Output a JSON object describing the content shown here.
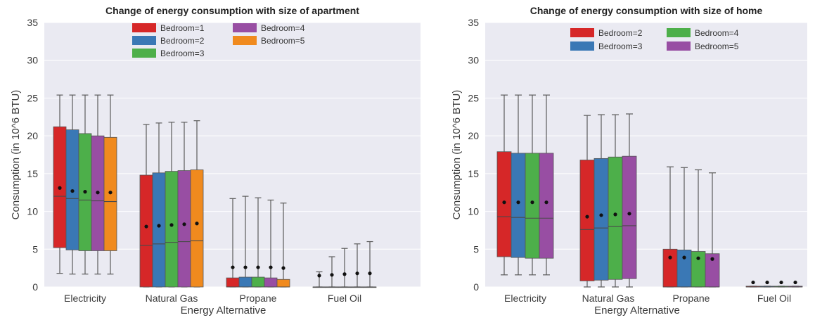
{
  "chart_data": [
    {
      "type": "box",
      "title": "Change of energy consumption with size of apartment",
      "xlabel": "Energy Alternative",
      "ylabel": "Consumption (in 10^6 BTU)",
      "ylim": [
        0,
        35
      ],
      "yticks": [
        0,
        5,
        10,
        15,
        20,
        25,
        30,
        35
      ],
      "grid": true,
      "legend_position": "top-center",
      "categories": [
        "Electricity",
        "Natural Gas",
        "Propane",
        "Fuel Oil"
      ],
      "series": [
        {
          "name": "Bedroom=1",
          "color": "#d62728",
          "boxes": [
            {
              "whisker_low": 1.8,
              "q1": 5.2,
              "median": 12.0,
              "q3": 21.2,
              "whisker_high": 25.4,
              "mean": 13.1
            },
            {
              "whisker_low": 0,
              "q1": 0,
              "median": 5.5,
              "q3": 14.8,
              "whisker_high": 21.5,
              "mean": 8.0
            },
            {
              "whisker_low": 0,
              "q1": 0,
              "median": 0,
              "q3": 1.2,
              "whisker_high": 11.7,
              "mean": 2.6
            },
            {
              "whisker_low": 0,
              "q1": 0,
              "median": 0,
              "q3": 0,
              "whisker_high": 2.0,
              "mean": 1.5
            }
          ]
        },
        {
          "name": "Bedroom=2",
          "color": "#3a78b5",
          "boxes": [
            {
              "whisker_low": 1.7,
              "q1": 4.9,
              "median": 11.7,
              "q3": 20.8,
              "whisker_high": 25.4,
              "mean": 12.7
            },
            {
              "whisker_low": 0,
              "q1": 0,
              "median": 5.7,
              "q3": 15.1,
              "whisker_high": 21.7,
              "mean": 8.1
            },
            {
              "whisker_low": 0,
              "q1": 0,
              "median": 0,
              "q3": 1.3,
              "whisker_high": 12.0,
              "mean": 2.6
            },
            {
              "whisker_low": 0,
              "q1": 0,
              "median": 0,
              "q3": 0,
              "whisker_high": 4.0,
              "mean": 1.6
            }
          ]
        },
        {
          "name": "Bedroom=3",
          "color": "#4daf4a",
          "boxes": [
            {
              "whisker_low": 1.7,
              "q1": 4.8,
              "median": 11.5,
              "q3": 20.3,
              "whisker_high": 25.4,
              "mean": 12.6
            },
            {
              "whisker_low": 0,
              "q1": 0,
              "median": 5.9,
              "q3": 15.3,
              "whisker_high": 21.8,
              "mean": 8.2
            },
            {
              "whisker_low": 0,
              "q1": 0,
              "median": 0,
              "q3": 1.3,
              "whisker_high": 11.8,
              "mean": 2.6
            },
            {
              "whisker_low": 0,
              "q1": 0,
              "median": 0,
              "q3": 0,
              "whisker_high": 5.1,
              "mean": 1.7
            }
          ]
        },
        {
          "name": "Bedroom=4",
          "color": "#984ea3",
          "boxes": [
            {
              "whisker_low": 1.7,
              "q1": 4.8,
              "median": 11.4,
              "q3": 20.0,
              "whisker_high": 25.4,
              "mean": 12.5
            },
            {
              "whisker_low": 0,
              "q1": 0,
              "median": 6.0,
              "q3": 15.4,
              "whisker_high": 21.8,
              "mean": 8.3
            },
            {
              "whisker_low": 0,
              "q1": 0,
              "median": 0,
              "q3": 1.2,
              "whisker_high": 11.5,
              "mean": 2.6
            },
            {
              "whisker_low": 0,
              "q1": 0,
              "median": 0,
              "q3": 0,
              "whisker_high": 5.7,
              "mean": 1.8
            }
          ]
        },
        {
          "name": "Bedroom=5",
          "color": "#f08a1e",
          "boxes": [
            {
              "whisker_low": 1.7,
              "q1": 4.8,
              "median": 11.3,
              "q3": 19.8,
              "whisker_high": 25.4,
              "mean": 12.5
            },
            {
              "whisker_low": 0,
              "q1": 0,
              "median": 6.1,
              "q3": 15.5,
              "whisker_high": 22.0,
              "mean": 8.4
            },
            {
              "whisker_low": 0,
              "q1": 0,
              "median": 0,
              "q3": 1.0,
              "whisker_high": 11.1,
              "mean": 2.5
            },
            {
              "whisker_low": 0,
              "q1": 0,
              "median": 0,
              "q3": 0,
              "whisker_high": 6.0,
              "mean": 1.8
            }
          ]
        }
      ]
    },
    {
      "type": "box",
      "title": "Change of energy consumption with size of home",
      "xlabel": "Energy Alternative",
      "ylabel": "Consumption (in 10^6 BTU)",
      "ylim": [
        0,
        35
      ],
      "yticks": [
        0,
        5,
        10,
        15,
        20,
        25,
        30,
        35
      ],
      "grid": true,
      "legend_position": "top-center",
      "categories": [
        "Electricity",
        "Natural Gas",
        "Propane",
        "Fuel Oil"
      ],
      "series": [
        {
          "name": "Bedroom=2",
          "color": "#d62728",
          "boxes": [
            {
              "whisker_low": 1.6,
              "q1": 4.0,
              "median": 9.3,
              "q3": 17.9,
              "whisker_high": 25.4,
              "mean": 11.2
            },
            {
              "whisker_low": 0,
              "q1": 0.8,
              "median": 7.6,
              "q3": 16.8,
              "whisker_high": 22.7,
              "mean": 9.3
            },
            {
              "whisker_low": 0,
              "q1": 0,
              "median": 0,
              "q3": 5.0,
              "whisker_high": 15.9,
              "mean": 3.9
            },
            {
              "whisker_low": 0,
              "q1": 0,
              "median": 0,
              "q3": 0.1,
              "whisker_high": 0.1,
              "mean": 0.6
            }
          ]
        },
        {
          "name": "Bedroom=3",
          "color": "#3a78b5",
          "boxes": [
            {
              "whisker_low": 1.6,
              "q1": 3.9,
              "median": 9.2,
              "q3": 17.7,
              "whisker_high": 25.4,
              "mean": 11.2
            },
            {
              "whisker_low": 0,
              "q1": 0.9,
              "median": 7.8,
              "q3": 17.0,
              "whisker_high": 22.8,
              "mean": 9.5
            },
            {
              "whisker_low": 0,
              "q1": 0,
              "median": 0,
              "q3": 4.9,
              "whisker_high": 15.8,
              "mean": 3.9
            },
            {
              "whisker_low": 0,
              "q1": 0,
              "median": 0,
              "q3": 0.1,
              "whisker_high": 0.1,
              "mean": 0.6
            }
          ]
        },
        {
          "name": "Bedroom=4",
          "color": "#4daf4a",
          "boxes": [
            {
              "whisker_low": 1.6,
              "q1": 3.8,
              "median": 9.1,
              "q3": 17.7,
              "whisker_high": 25.4,
              "mean": 11.2
            },
            {
              "whisker_low": 0,
              "q1": 1.0,
              "median": 8.0,
              "q3": 17.2,
              "whisker_high": 22.8,
              "mean": 9.6
            },
            {
              "whisker_low": 0,
              "q1": 0,
              "median": 0,
              "q3": 4.7,
              "whisker_high": 15.5,
              "mean": 3.8
            },
            {
              "whisker_low": 0,
              "q1": 0,
              "median": 0,
              "q3": 0.1,
              "whisker_high": 0.1,
              "mean": 0.6
            }
          ]
        },
        {
          "name": "Bedroom=5",
          "color": "#984ea3",
          "boxes": [
            {
              "whisker_low": 1.6,
              "q1": 3.8,
              "median": 9.1,
              "q3": 17.7,
              "whisker_high": 25.4,
              "mean": 11.2
            },
            {
              "whisker_low": 0,
              "q1": 1.1,
              "median": 8.1,
              "q3": 17.3,
              "whisker_high": 22.9,
              "mean": 9.7
            },
            {
              "whisker_low": 0,
              "q1": 0,
              "median": 0,
              "q3": 4.4,
              "whisker_high": 15.1,
              "mean": 3.7
            },
            {
              "whisker_low": 0,
              "q1": 0,
              "median": 0,
              "q3": 0.1,
              "whisker_high": 0.1,
              "mean": 0.6
            }
          ]
        }
      ]
    }
  ]
}
